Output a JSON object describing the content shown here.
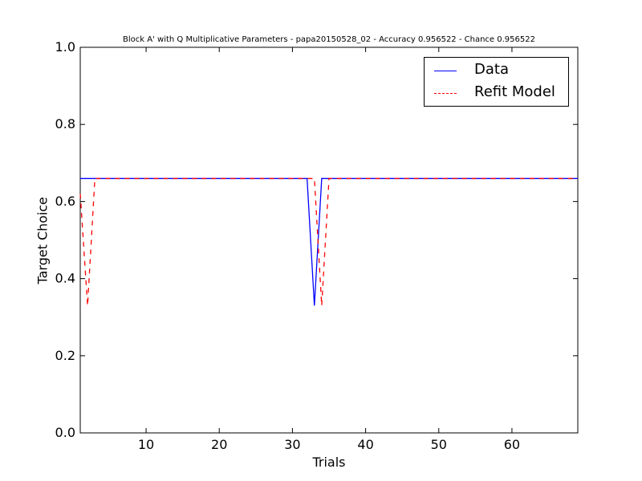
{
  "chart_data": {
    "type": "line",
    "title": "Block A' with Q Multiplicative Parameters - papa20150528_02 - Accuracy 0.956522 - Chance 0.956522",
    "xlabel": "Trials",
    "ylabel": "Target Choice",
    "xlim": [
      1,
      69
    ],
    "ylim": [
      0.0,
      1.0
    ],
    "xticks": [
      10,
      20,
      30,
      40,
      50,
      60
    ],
    "yticks": [
      "0.0",
      "0.2",
      "0.4",
      "0.6",
      "0.8",
      "1.0"
    ],
    "legend_position": "top-right",
    "series": [
      {
        "name": "Data",
        "color": "#0000ff",
        "style": "solid",
        "x": [
          1,
          32,
          33,
          34,
          69
        ],
        "y": [
          0.66,
          0.66,
          0.33,
          0.66,
          0.66
        ]
      },
      {
        "name": "Refit Model",
        "color": "#ff0000",
        "style": "dashed",
        "x": [
          1,
          2,
          3,
          33,
          34,
          35,
          69
        ],
        "y": [
          0.62,
          0.33,
          0.66,
          0.66,
          0.33,
          0.66,
          0.66
        ]
      }
    ]
  }
}
